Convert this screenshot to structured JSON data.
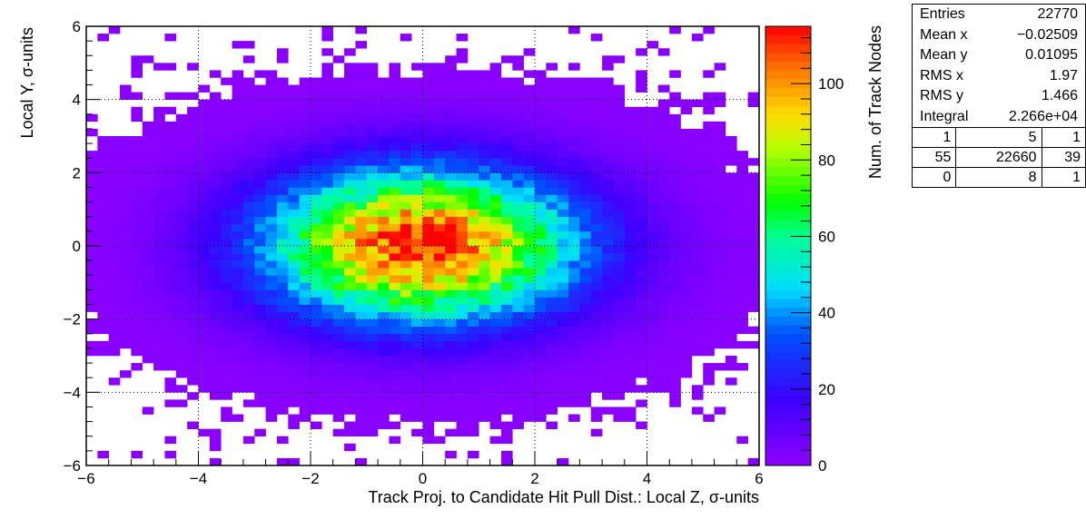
{
  "chart_data": {
    "type": "heatmap",
    "xlabel": "Track Proj. to Candidate Hit Pull Dist.: Local Z, σ-units",
    "ylabel": "Local Y, σ-units",
    "zlabel": "Num. of Track Nodes",
    "xlim": [
      -6,
      6
    ],
    "ylim": [
      -6,
      6
    ],
    "zlim": [
      0,
      115
    ],
    "xticks": [
      -6,
      -4,
      -2,
      0,
      2,
      4,
      6
    ],
    "yticks": [
      -6,
      -4,
      -2,
      0,
      2,
      4,
      6
    ],
    "zticks": [
      0,
      20,
      40,
      60,
      80,
      100
    ],
    "xtick_labels": [
      "−6",
      "−4",
      "−2",
      "0",
      "2",
      "4",
      "6"
    ],
    "ytick_labels": [
      "−6",
      "−4",
      "−2",
      "0",
      "2",
      "4",
      "6"
    ],
    "ztick_labels": [
      "0",
      "20",
      "40",
      "60",
      "80",
      "100"
    ],
    "bins_x": 60,
    "bins_y": 60,
    "grid": true,
    "distribution": {
      "model": "gaussian",
      "peak_value": 112,
      "mean_x": -0.02509,
      "mean_y": 0.01095,
      "rms_x": 1.97,
      "rms_y": 1.466
    },
    "stats": {
      "rows": [
        {
          "label": "Entries",
          "value": "22770"
        },
        {
          "label": "Mean x",
          "value": "−0.02509"
        },
        {
          "label": "Mean y",
          "value": "0.01095"
        },
        {
          "label": "RMS x",
          "value": "1.97"
        },
        {
          "label": "RMS y",
          "value": "1.466"
        },
        {
          "label": "Integral",
          "value": "2.266e+04"
        }
      ],
      "overflow_grid": [
        [
          "1",
          "5",
          "1"
        ],
        [
          "55",
          "22660",
          "39"
        ],
        [
          "0",
          "8",
          "1"
        ]
      ]
    }
  }
}
